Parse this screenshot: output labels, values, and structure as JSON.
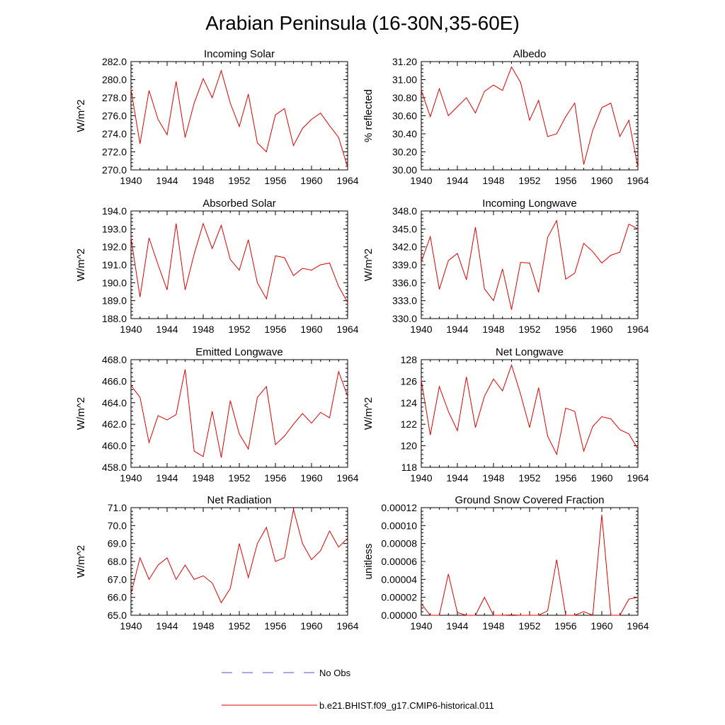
{
  "figure": {
    "title": "Arabian Peninsula (16-30N,35-60E)"
  },
  "legend": {
    "entries": [
      {
        "label": "No Obs",
        "color": "#5050c8",
        "dashed": true
      },
      {
        "label": "b.e21.BHIST.f09_g17.CMIP6-historical.011",
        "color": "#e00000",
        "dashed": false
      }
    ]
  },
  "chart_data": [
    {
      "type": "line",
      "title": "Incoming Solar",
      "ylabel": "W/m^2",
      "xlim": [
        1940,
        1964
      ],
      "ylim": [
        270,
        282
      ],
      "x_ticks": [
        "1940",
        "1944",
        "1948",
        "1952",
        "1956",
        "1960",
        "1964"
      ],
      "y_ticks": [
        "270.0",
        "272.0",
        "274.0",
        "276.0",
        "278.0",
        "280.0",
        "282.0"
      ],
      "x": [
        1940,
        1941,
        1942,
        1943,
        1944,
        1945,
        1946,
        1947,
        1948,
        1949,
        1950,
        1951,
        1952,
        1953,
        1954,
        1955,
        1956,
        1957,
        1958,
        1959,
        1960,
        1961,
        1962,
        1963,
        1964
      ],
      "series": [
        {
          "color": "#e00000",
          "values": [
            278.9,
            272.9,
            278.8,
            275.6,
            273.9,
            279.8,
            273.6,
            277.4,
            280.1,
            278.0,
            281.0,
            277.4,
            274.8,
            278.4,
            273.0,
            272.0,
            276.1,
            276.8,
            272.7,
            274.6,
            275.6,
            276.3,
            274.9,
            273.6,
            270.3
          ]
        }
      ]
    },
    {
      "type": "line",
      "title": "Albedo",
      "ylabel": "% reflected",
      "xlim": [
        1940,
        1964
      ],
      "ylim": [
        30.0,
        31.2
      ],
      "x_ticks": [
        "1940",
        "1944",
        "1948",
        "1952",
        "1956",
        "1960",
        "1964"
      ],
      "y_ticks": [
        "30.00",
        "30.20",
        "30.40",
        "30.60",
        "30.80",
        "31.00",
        "31.20"
      ],
      "x": [
        1940,
        1941,
        1942,
        1943,
        1944,
        1945,
        1946,
        1947,
        1948,
        1949,
        1950,
        1951,
        1952,
        1953,
        1954,
        1955,
        1956,
        1957,
        1958,
        1959,
        1960,
        1961,
        1962,
        1963,
        1964
      ],
      "series": [
        {
          "color": "#e00000",
          "values": [
            30.88,
            30.59,
            30.9,
            30.6,
            30.7,
            30.8,
            30.63,
            30.87,
            30.94,
            30.88,
            31.14,
            30.97,
            30.55,
            30.77,
            30.37,
            30.4,
            30.59,
            30.74,
            30.06,
            30.44,
            30.69,
            30.74,
            30.37,
            30.55,
            30.03
          ]
        }
      ]
    },
    {
      "type": "line",
      "title": "Absorbed Solar",
      "ylabel": "W/m^2",
      "xlim": [
        1940,
        1964
      ],
      "ylim": [
        188,
        194
      ],
      "x_ticks": [
        "1940",
        "1944",
        "1948",
        "1952",
        "1956",
        "1960",
        "1964"
      ],
      "y_ticks": [
        "188.0",
        "189.0",
        "190.0",
        "191.0",
        "192.0",
        "193.0",
        "194.0"
      ],
      "x": [
        1940,
        1941,
        1942,
        1943,
        1944,
        1945,
        1946,
        1947,
        1948,
        1949,
        1950,
        1951,
        1952,
        1953,
        1954,
        1955,
        1956,
        1957,
        1958,
        1959,
        1960,
        1961,
        1962,
        1963,
        1964
      ],
      "series": [
        {
          "color": "#e00000",
          "values": [
            192.5,
            189.2,
            192.5,
            191.0,
            189.6,
            193.3,
            189.6,
            191.6,
            193.3,
            191.9,
            193.2,
            191.3,
            190.7,
            192.4,
            190.0,
            189.1,
            191.5,
            191.4,
            190.4,
            190.8,
            190.7,
            191.0,
            191.1,
            189.8,
            188.9
          ]
        }
      ]
    },
    {
      "type": "line",
      "title": "Incoming Longwave",
      "ylabel": "W/m^2",
      "xlim": [
        1940,
        1964
      ],
      "ylim": [
        330,
        348
      ],
      "x_ticks": [
        "1940",
        "1944",
        "1948",
        "1952",
        "1956",
        "1960",
        "1964"
      ],
      "y_ticks": [
        "330.0",
        "333.0",
        "336.0",
        "339.0",
        "342.0",
        "345.0",
        "348.0"
      ],
      "x": [
        1940,
        1941,
        1942,
        1943,
        1944,
        1945,
        1946,
        1947,
        1948,
        1949,
        1950,
        1951,
        1952,
        1953,
        1954,
        1955,
        1956,
        1957,
        1958,
        1959,
        1960,
        1961,
        1962,
        1963,
        1964
      ],
      "series": [
        {
          "color": "#e00000",
          "values": [
            339.5,
            343.7,
            334.9,
            339.7,
            340.9,
            336.5,
            345.3,
            335.0,
            333.0,
            338.3,
            331.5,
            339.4,
            339.3,
            334.4,
            343.6,
            346.4,
            336.6,
            337.6,
            342.6,
            341.2,
            339.3,
            340.6,
            341.1,
            345.8,
            345.0
          ]
        }
      ]
    },
    {
      "type": "line",
      "title": "Emitted Longwave",
      "ylabel": "W/m^2",
      "xlim": [
        1940,
        1964
      ],
      "ylim": [
        458,
        468
      ],
      "x_ticks": [
        "1940",
        "1944",
        "1948",
        "1952",
        "1956",
        "1960",
        "1964"
      ],
      "y_ticks": [
        "458.0",
        "460.0",
        "462.0",
        "464.0",
        "466.0",
        "468.0"
      ],
      "x": [
        1940,
        1941,
        1942,
        1943,
        1944,
        1945,
        1946,
        1947,
        1948,
        1949,
        1950,
        1951,
        1952,
        1953,
        1954,
        1955,
        1956,
        1957,
        1958,
        1959,
        1960,
        1961,
        1962,
        1963,
        1964
      ],
      "series": [
        {
          "color": "#e00000",
          "values": [
            465.6,
            464.5,
            460.3,
            462.8,
            462.4,
            462.9,
            467.1,
            459.5,
            459.0,
            463.2,
            458.9,
            464.2,
            461.1,
            459.7,
            464.5,
            465.5,
            460.1,
            460.9,
            462.0,
            463.0,
            462.1,
            463.1,
            462.6,
            466.9,
            464.6
          ]
        }
      ]
    },
    {
      "type": "line",
      "title": "Net Longwave",
      "ylabel": "W/m^2",
      "xlim": [
        1940,
        1964
      ],
      "ylim": [
        118,
        128
      ],
      "x_ticks": [
        "1940",
        "1944",
        "1948",
        "1952",
        "1956",
        "1960",
        "1964"
      ],
      "y_ticks": [
        "118",
        "120",
        "122",
        "124",
        "126",
        "128"
      ],
      "x": [
        1940,
        1941,
        1942,
        1943,
        1944,
        1945,
        1946,
        1947,
        1948,
        1949,
        1950,
        1951,
        1952,
        1953,
        1954,
        1955,
        1956,
        1957,
        1958,
        1959,
        1960,
        1961,
        1962,
        1963,
        1964
      ],
      "series": [
        {
          "color": "#e00000",
          "values": [
            126.1,
            121.0,
            125.5,
            123.2,
            121.4,
            126.4,
            121.7,
            124.6,
            126.2,
            125.1,
            127.5,
            124.8,
            121.7,
            125.4,
            120.9,
            119.2,
            123.5,
            123.2,
            119.5,
            121.8,
            122.7,
            122.5,
            121.5,
            121.1,
            119.7
          ]
        }
      ]
    },
    {
      "type": "line",
      "title": "Net Radiation",
      "ylabel": "W/m^2",
      "xlim": [
        1940,
        1964
      ],
      "ylim": [
        65,
        71
      ],
      "x_ticks": [
        "1940",
        "1944",
        "1948",
        "1952",
        "1956",
        "1960",
        "1964"
      ],
      "y_ticks": [
        "65.0",
        "66.0",
        "67.0",
        "68.0",
        "69.0",
        "70.0",
        "71.0"
      ],
      "x": [
        1940,
        1941,
        1942,
        1943,
        1944,
        1945,
        1946,
        1947,
        1948,
        1949,
        1950,
        1951,
        1952,
        1953,
        1954,
        1955,
        1956,
        1957,
        1958,
        1959,
        1960,
        1961,
        1962,
        1963,
        1964
      ],
      "series": [
        {
          "color": "#e00000",
          "values": [
            66.2,
            68.2,
            67.0,
            67.8,
            68.2,
            67.0,
            67.8,
            67.0,
            67.2,
            66.8,
            65.7,
            66.5,
            69.0,
            67.1,
            69.0,
            69.9,
            68.0,
            68.2,
            70.9,
            69.0,
            68.1,
            68.6,
            69.7,
            68.8,
            69.3
          ]
        }
      ]
    },
    {
      "type": "line",
      "title": "Ground Snow Covered Fraction",
      "ylabel": "unitless",
      "xlim": [
        1940,
        1964
      ],
      "ylim": [
        0,
        0.00012
      ],
      "x_ticks": [
        "1940",
        "1944",
        "1948",
        "1952",
        "1956",
        "1960",
        "1964"
      ],
      "y_ticks": [
        "0.00000",
        "0.00002",
        "0.00004",
        "0.00006",
        "0.00008",
        "0.00010",
        "0.00012"
      ],
      "x": [
        1940,
        1941,
        1942,
        1943,
        1944,
        1945,
        1946,
        1947,
        1948,
        1949,
        1950,
        1951,
        1952,
        1953,
        1954,
        1955,
        1956,
        1957,
        1958,
        1959,
        1960,
        1961,
        1962,
        1963,
        1964
      ],
      "series": [
        {
          "color": "#e00000",
          "values": [
            1.3e-05,
            0.0,
            0.0,
            4.6e-05,
            3e-06,
            0.0,
            0.0,
            2e-05,
            0.0,
            0.0,
            5e-07,
            0.0,
            0.0,
            0.0,
            5e-06,
            6.2e-05,
            0.0,
            0.0,
            4e-06,
            0.0,
            0.000112,
            0.0,
            0.0,
            1.8e-05,
            2e-05
          ]
        }
      ]
    }
  ]
}
